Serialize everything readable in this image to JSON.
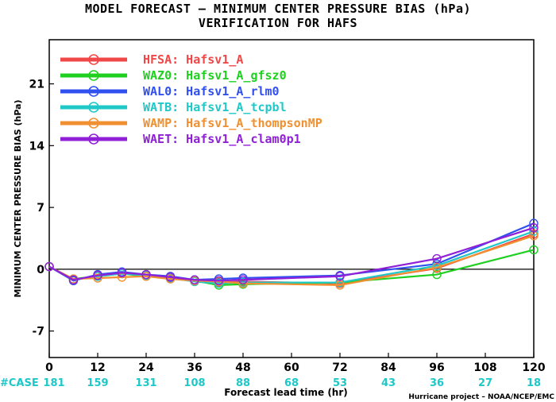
{
  "header": {
    "title": "MODEL FORECAST – MINIMUM CENTER PRESSURE BIAS (hPa)",
    "subtitle": "VERIFICATION FOR HAFS"
  },
  "footer": {
    "credit": "Hurricane project – NOAA/NCEP/EMC"
  },
  "chart_data": {
    "type": "line",
    "title": "MODEL FORECAST – MINIMUM CENTER PRESSURE BIAS (hPa)",
    "subtitle": "VERIFICATION FOR HAFS",
    "xlabel": "Forecast lead time (hr)",
    "ylabel": "MINIMUM CENTER PRESSURE BIAS (hPa)",
    "xlim": [
      0,
      120
    ],
    "ylim": [
      -10,
      26
    ],
    "xticks": [
      0,
      12,
      24,
      36,
      48,
      60,
      72,
      84,
      96,
      108,
      120
    ],
    "yticks": [
      -7,
      0,
      7,
      14,
      21
    ],
    "grid": false,
    "zero_line": true,
    "legend_position": "top-left",
    "case_label": "#CASE",
    "case_counts": [
      {
        "x": 0,
        "n": "181"
      },
      {
        "x": 12,
        "n": "159"
      },
      {
        "x": 24,
        "n": "131"
      },
      {
        "x": 36,
        "n": "108"
      },
      {
        "x": 48,
        "n": "88"
      },
      {
        "x": 60,
        "n": "68"
      },
      {
        "x": 72,
        "n": "53"
      },
      {
        "x": 84,
        "n": "43"
      },
      {
        "x": 96,
        "n": "36"
      },
      {
        "x": 108,
        "n": "27"
      },
      {
        "x": 120,
        "n": "18"
      }
    ],
    "series": [
      {
        "name": "HFSA:  Hafsv1_A",
        "color": "#f04848",
        "x": [
          0,
          6,
          12,
          18,
          24,
          30,
          36,
          42,
          48,
          72,
          96,
          120
        ],
        "values": [
          0.3,
          -1.2,
          -0.7,
          -0.5,
          -0.7,
          -1.0,
          -1.3,
          -1.5,
          -1.4,
          -1.6,
          0.1,
          4.0
        ]
      },
      {
        "name": "WAZ0:  Hafsv1_A_gfsz0",
        "color": "#20d020",
        "x": [
          0,
          6,
          12,
          18,
          24,
          30,
          36,
          42,
          48,
          72,
          96,
          120
        ],
        "values": [
          0.3,
          -1.1,
          -0.8,
          -0.5,
          -0.8,
          -1.0,
          -1.3,
          -1.8,
          -1.7,
          -1.5,
          -0.6,
          2.2
        ]
      },
      {
        "name": "WAL0:  Hafsv1_A_rlm0",
        "color": "#3050f0",
        "x": [
          0,
          6,
          12,
          18,
          24,
          30,
          36,
          42,
          48,
          72,
          96,
          120
        ],
        "values": [
          0.3,
          -1.3,
          -0.6,
          -0.3,
          -0.6,
          -0.8,
          -1.2,
          -1.1,
          -1.0,
          -0.7,
          0.6,
          5.2
        ]
      },
      {
        "name": "WATB:  Hafsv1_A_tcpbl",
        "color": "#20c8c8",
        "x": [
          0,
          6,
          12,
          18,
          24,
          30,
          36,
          42,
          48,
          72,
          96,
          120
        ],
        "values": [
          0.3,
          -1.2,
          -0.8,
          -0.5,
          -0.7,
          -1.0,
          -1.4,
          -1.6,
          -1.5,
          -1.5,
          0.4,
          4.3
        ]
      },
      {
        "name": "WAMP:  Hafsv1_A_thompsonMP",
        "color": "#f09030",
        "x": [
          0,
          6,
          12,
          18,
          24,
          30,
          36,
          42,
          48,
          72,
          96,
          120
        ],
        "values": [
          0.3,
          -1.1,
          -1.0,
          -0.9,
          -0.8,
          -1.1,
          -1.3,
          -1.4,
          -1.6,
          -1.8,
          0.2,
          3.8
        ]
      },
      {
        "name": "WAET:  Hafsv1_A_clam0p1",
        "color": "#9020d8",
        "x": [
          0,
          6,
          12,
          18,
          24,
          30,
          36,
          42,
          48,
          72,
          96,
          120
        ],
        "values": [
          0.3,
          -1.2,
          -0.7,
          -0.4,
          -0.6,
          -0.9,
          -1.2,
          -1.3,
          -1.2,
          -0.8,
          1.2,
          4.7
        ]
      }
    ]
  }
}
